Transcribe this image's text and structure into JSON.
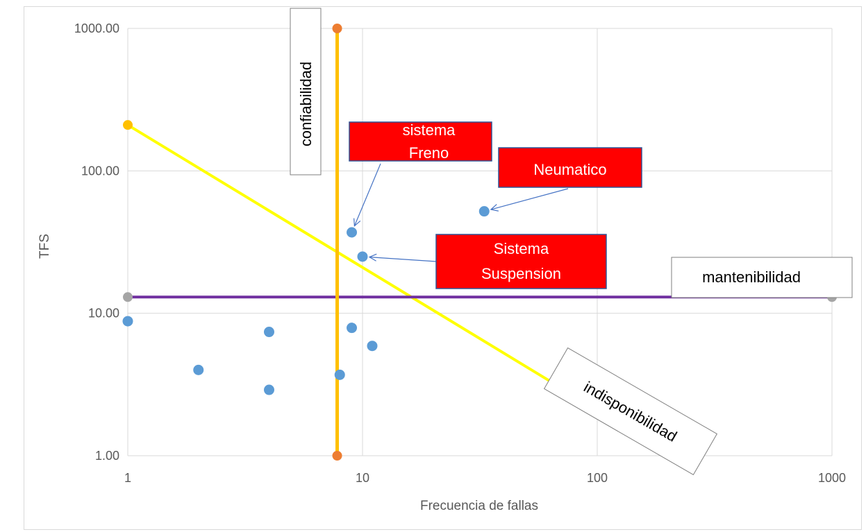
{
  "chart_data": {
    "type": "scatter",
    "title": "",
    "xlabel": "Frecuencia de fallas",
    "ylabel": "TFS",
    "xscale": "log",
    "yscale": "log",
    "xlim": [
      1,
      1000
    ],
    "ylim": [
      1,
      1000
    ],
    "grid": true,
    "x_ticks": [
      "1",
      "10",
      "100",
      "1000"
    ],
    "y_ticks": [
      "1.00",
      "10.00",
      "100.00",
      "1000.00"
    ],
    "points": [
      {
        "x": 1,
        "y": 8.8
      },
      {
        "x": 2,
        "y": 4.0
      },
      {
        "x": 4,
        "y": 7.4
      },
      {
        "x": 4,
        "y": 2.9
      },
      {
        "x": 8,
        "y": 3.7
      },
      {
        "x": 9,
        "y": 37
      },
      {
        "x": 9,
        "y": 7.9
      },
      {
        "x": 10,
        "y": 25
      },
      {
        "x": 11,
        "y": 5.9
      },
      {
        "x": 33,
        "y": 52
      }
    ],
    "lines": [
      {
        "label": "confiabilidad",
        "color": "#FFC000",
        "marker_color": "#ED7D31",
        "points": [
          [
            7.8,
            1000
          ],
          [
            7.8,
            1
          ]
        ]
      },
      {
        "label": "mantenibilidad",
        "color": "#7030A0",
        "marker_color": "#A5A5A5",
        "points": [
          [
            1,
            13
          ],
          [
            1000,
            13
          ]
        ]
      },
      {
        "label": "indisponibilidad",
        "color": "#FFFF00",
        "marker_color": "#FFC000",
        "points": [
          [
            1,
            210
          ],
          [
            210,
            1
          ]
        ]
      }
    ],
    "callouts": [
      {
        "text": "sistema Freno",
        "lines": [
          "sistema",
          "Freno"
        ],
        "target": [
          9,
          37
        ]
      },
      {
        "text": "Neumatico",
        "lines": [
          "Neumatico"
        ],
        "target": [
          33,
          52
        ]
      },
      {
        "text": "Sistema Suspension",
        "lines": [
          "Sistema",
          "Suspension"
        ],
        "target": [
          10,
          25
        ]
      }
    ],
    "point_color": "#5B9BD5"
  }
}
